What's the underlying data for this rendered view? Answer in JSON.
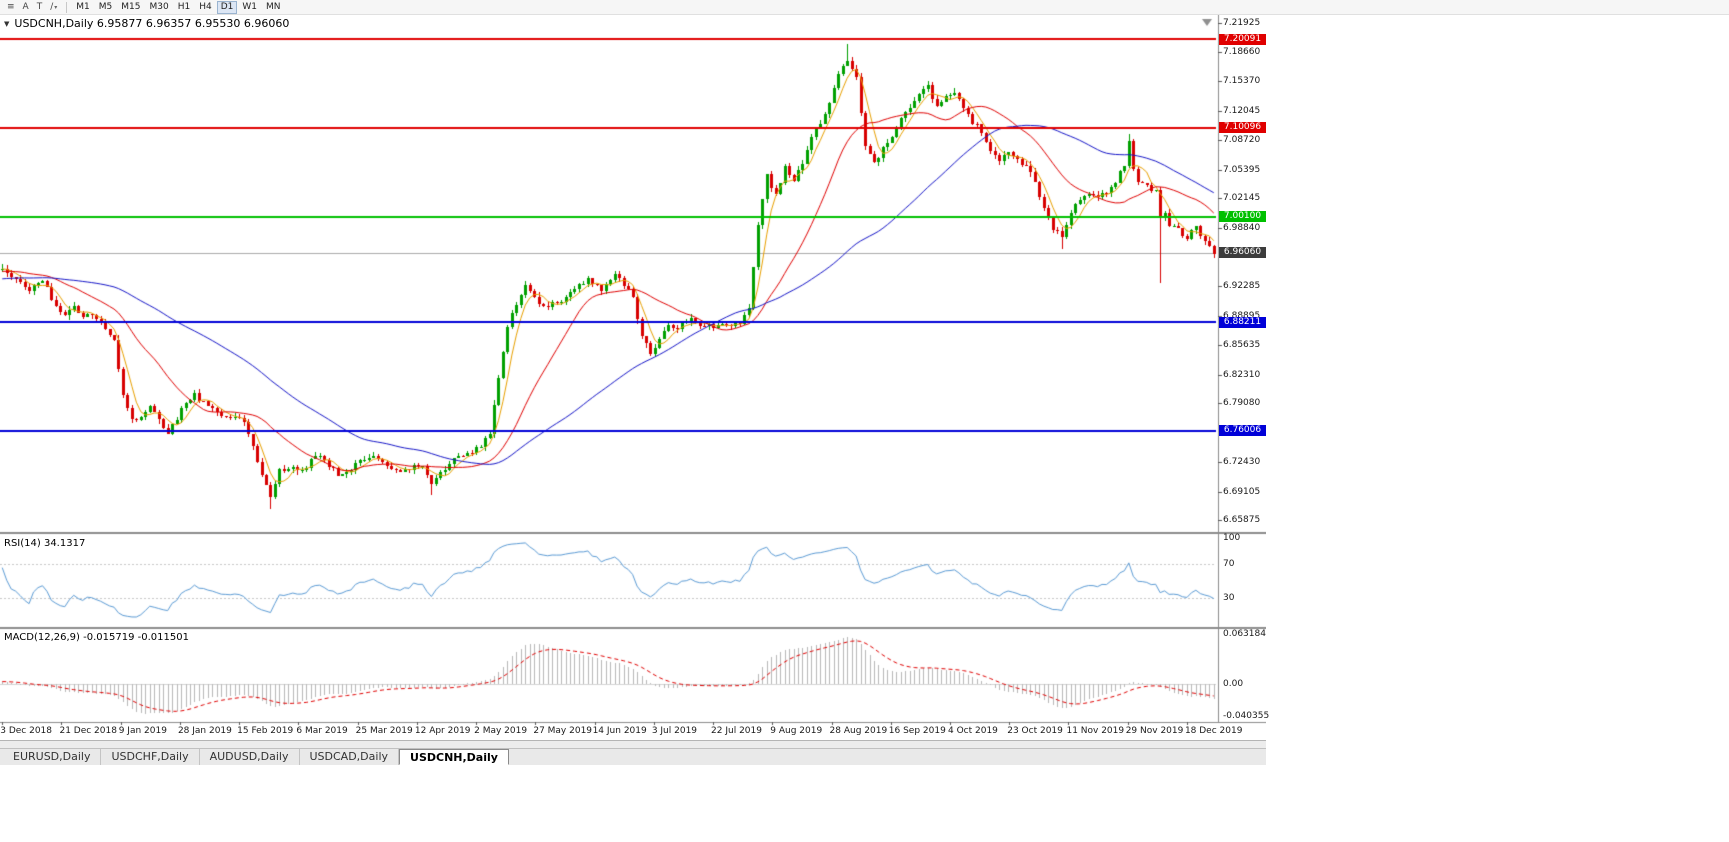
{
  "toolbar": {
    "tools": [
      {
        "id": "chart-menu-button",
        "icon": "menu"
      },
      {
        "id": "cursor-a-button",
        "label": "A"
      },
      {
        "id": "text-tool-button",
        "label": "T"
      },
      {
        "id": "draw-tool-button",
        "icon": "line"
      }
    ],
    "timeframes": [
      "M1",
      "M5",
      "M15",
      "M30",
      "H1",
      "H4",
      "D1",
      "W1",
      "MN"
    ],
    "active_timeframe": "D1"
  },
  "chart": {
    "title": "USDCNH,Daily  6.95877 6.96357 6.95530 6.96060"
  },
  "price_axis": {
    "labels": [
      "7.21925",
      "7.18660",
      "7.15370",
      "7.12045",
      "7.08720",
      "7.05395",
      "7.02145",
      "6.98840",
      "6.92285",
      "6.88895",
      "6.85635",
      "6.82310",
      "6.79080",
      "6.72430",
      "6.69105",
      "6.65875"
    ]
  },
  "hlines": [
    {
      "price": 7.20091,
      "label": "7.20091",
      "color": "red"
    },
    {
      "price": 7.10096,
      "label": "7.10096",
      "color": "red"
    },
    {
      "price": 7.001,
      "label": "7.00100",
      "color": "green"
    },
    {
      "price": 6.88211,
      "label": "6.88211",
      "color": "blue"
    },
    {
      "price": 6.76006,
      "label": "6.76006",
      "color": "blue"
    }
  ],
  "current_price_label": "6.96060",
  "rsi": {
    "label": "RSI(14) 34.1317",
    "axis_labels": [
      "100",
      "70",
      "30"
    ],
    "levels": [
      70,
      30
    ]
  },
  "macd": {
    "label": "MACD(12,26,9) -0.015719 -0.011501",
    "axis_labels": [
      "0.063184",
      "0.00",
      "-0.040355"
    ]
  },
  "tabs": [
    {
      "label": "EURUSD,Daily",
      "active": false
    },
    {
      "label": "USDCHF,Daily",
      "active": false
    },
    {
      "label": "AUDUSD,Daily",
      "active": false
    },
    {
      "label": "USDCAD,Daily",
      "active": false
    },
    {
      "label": "USDCNH,Daily",
      "active": true
    }
  ],
  "colors": {
    "bull": "#00a000",
    "bear": "#d80000",
    "ma_fast": "#e8a000",
    "ma_mid": "#e00000",
    "ma_slow": "#1414c8",
    "rsi": "#5b9bd5",
    "macd_hist": "#b8b8b8",
    "macd_signal": "#e00000",
    "hline_red": "#e00000",
    "hline_green": "#00c000",
    "hline_blue": "#0000d8",
    "current_price": "#aaaaaa",
    "badge_current_bg": "#3c3c3c"
  },
  "chart_data": {
    "type": "candlestick",
    "symbol": "USDCNH",
    "timeframe": "Daily",
    "n_candles": 272,
    "pre_candles": 60,
    "seed": 12,
    "noise": 0.006,
    "wick": 0.005,
    "pre_start": 6.915,
    "pre_end": 6.944,
    "scale": {
      "pmax": 7.2259,
      "pmin": 6.648
    },
    "ma_periods": {
      "fast": 5,
      "mid": 20,
      "slow": 55
    },
    "rsi_period": 14,
    "macd": {
      "fast": 12,
      "slow": 26,
      "signal": 9,
      "scale_max": 0.067,
      "scale_min": -0.0452
    },
    "x_label_step": 13.25,
    "dates": [
      "3 Dec 2018",
      "21 Dec 2018",
      "9 Jan 2019",
      "28 Jan 2019",
      "15 Feb 2019",
      "6 Mar 2019",
      "25 Mar 2019",
      "12 Apr 2019",
      "2 May 2019",
      "27 May 2019",
      "14 Jun 2019",
      "3 Jul 2019",
      "22 Jul 2019",
      "9 Aug 2019",
      "28 Aug 2019",
      "16 Sep 2019",
      "4 Oct 2019",
      "23 Oct 2019",
      "11 Nov 2019",
      "29 Nov 2019",
      "18 Dec 2019"
    ],
    "anchors": [
      [
        0,
        6.94
      ],
      [
        3,
        6.932
      ],
      [
        6,
        6.92
      ],
      [
        9,
        6.93
      ],
      [
        12,
        6.9
      ],
      [
        14,
        6.889
      ],
      [
        16,
        6.9
      ],
      [
        18,
        6.885
      ],
      [
        20,
        6.893
      ],
      [
        23,
        6.872
      ],
      [
        25,
        6.86
      ],
      [
        27,
        6.8
      ],
      [
        29,
        6.772
      ],
      [
        31,
        6.776
      ],
      [
        33,
        6.79
      ],
      [
        35,
        6.773
      ],
      [
        37,
        6.758
      ],
      [
        40,
        6.782
      ],
      [
        43,
        6.8
      ],
      [
        46,
        6.786
      ],
      [
        49,
        6.776
      ],
      [
        52,
        6.775
      ],
      [
        54,
        6.768
      ],
      [
        56,
        6.744
      ],
      [
        58,
        6.708
      ],
      [
        60,
        6.688
      ],
      [
        62,
        6.715
      ],
      [
        65,
        6.72
      ],
      [
        67,
        6.713
      ],
      [
        70,
        6.733
      ],
      [
        73,
        6.72
      ],
      [
        76,
        6.708
      ],
      [
        79,
        6.722
      ],
      [
        82,
        6.73
      ],
      [
        85,
        6.726
      ],
      [
        88,
        6.713
      ],
      [
        91,
        6.718
      ],
      [
        94,
        6.72
      ],
      [
        96,
        6.701
      ],
      [
        98,
        6.712
      ],
      [
        101,
        6.73
      ],
      [
        104,
        6.736
      ],
      [
        107,
        6.74
      ],
      [
        109,
        6.758
      ],
      [
        111,
        6.822
      ],
      [
        113,
        6.878
      ],
      [
        115,
        6.9
      ],
      [
        117,
        6.926
      ],
      [
        119,
        6.912
      ],
      [
        121,
        6.898
      ],
      [
        123,
        6.902
      ],
      [
        125,
        6.906
      ],
      [
        128,
        6.921
      ],
      [
        131,
        6.93
      ],
      [
        134,
        6.92
      ],
      [
        137,
        6.934
      ],
      [
        139,
        6.925
      ],
      [
        141,
        6.908
      ],
      [
        143,
        6.868
      ],
      [
        145,
        6.848
      ],
      [
        147,
        6.862
      ],
      [
        149,
        6.88
      ],
      [
        151,
        6.876
      ],
      [
        154,
        6.886
      ],
      [
        157,
        6.878
      ],
      [
        160,
        6.877
      ],
      [
        163,
        6.879
      ],
      [
        165,
        6.88
      ],
      [
        167,
        6.9
      ],
      [
        169,
        6.99
      ],
      [
        171,
        7.046
      ],
      [
        173,
        7.024
      ],
      [
        175,
        7.056
      ],
      [
        177,
        7.042
      ],
      [
        179,
        7.062
      ],
      [
        181,
        7.09
      ],
      [
        183,
        7.108
      ],
      [
        185,
        7.13
      ],
      [
        187,
        7.16
      ],
      [
        189,
        7.178
      ],
      [
        191,
        7.158
      ],
      [
        193,
        7.082
      ],
      [
        195,
        7.06
      ],
      [
        197,
        7.078
      ],
      [
        199,
        7.09
      ],
      [
        201,
        7.114
      ],
      [
        203,
        7.124
      ],
      [
        205,
        7.136
      ],
      [
        207,
        7.148
      ],
      [
        209,
        7.124
      ],
      [
        211,
        7.136
      ],
      [
        213,
        7.142
      ],
      [
        215,
        7.122
      ],
      [
        217,
        7.108
      ],
      [
        219,
        7.096
      ],
      [
        221,
        7.078
      ],
      [
        223,
        7.062
      ],
      [
        225,
        7.072
      ],
      [
        227,
        7.068
      ],
      [
        229,
        7.056
      ],
      [
        231,
        7.04
      ],
      [
        233,
        7.008
      ],
      [
        235,
        6.988
      ],
      [
        237,
        6.978
      ],
      [
        239,
        7.006
      ],
      [
        241,
        7.022
      ],
      [
        243,
        7.028
      ],
      [
        245,
        7.022
      ],
      [
        247,
        7.03
      ],
      [
        249,
        7.042
      ],
      [
        251,
        7.06
      ],
      [
        252,
        7.086
      ],
      [
        253,
        7.056
      ],
      [
        254,
        7.042
      ],
      [
        256,
        7.034
      ],
      [
        258,
        7.03
      ],
      [
        259,
        6.998
      ],
      [
        260,
        7.006
      ],
      [
        261,
        6.992
      ],
      [
        263,
        6.986
      ],
      [
        265,
        6.976
      ],
      [
        267,
        6.99
      ],
      [
        269,
        6.972
      ],
      [
        271,
        6.9606
      ]
    ],
    "wick_events": [
      {
        "i": 60,
        "low": 6.672
      },
      {
        "i": 96,
        "low": 6.687
      },
      {
        "i": 189,
        "high": 7.196
      },
      {
        "i": 237,
        "low": 6.965
      },
      {
        "i": 252,
        "high": 7.094
      },
      {
        "i": 259,
        "low": 6.926
      }
    ]
  }
}
